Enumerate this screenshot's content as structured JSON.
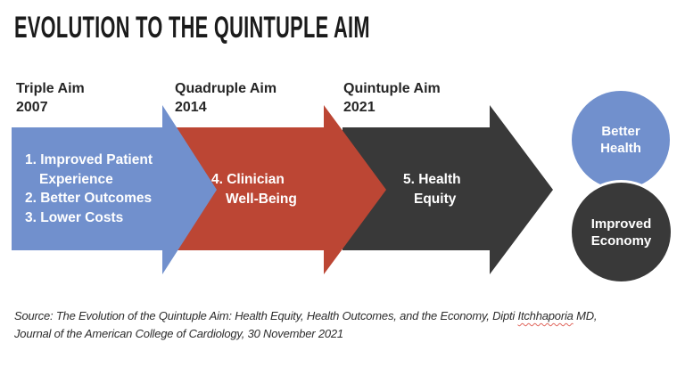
{
  "title": "EVOLUTION TO THE QUINTUPLE AIM",
  "colors": {
    "blue": "#7190cd",
    "red": "#bc4634",
    "dark": "#393939",
    "squiggle": "#e0665c"
  },
  "stages": [
    {
      "name": "Triple Aim",
      "year": "2007",
      "lines": [
        "1. Improved Patient",
        "Experience",
        "2. Better Outcomes",
        "3. Lower Costs"
      ]
    },
    {
      "name": "Quadruple Aim",
      "year": "2014",
      "lines": [
        "4. Clinician",
        "Well-Being"
      ]
    },
    {
      "name": "Quintuple Aim",
      "year": "2021",
      "lines": [
        "5. Health",
        "Equity"
      ]
    }
  ],
  "outcomes": [
    {
      "label": "Better Health"
    },
    {
      "label": "Improved Economy"
    }
  ],
  "source": {
    "prefix": "Source: The Evolution of the Quintuple Aim: Health Equity, Health Outcomes, and the Economy, Dipti ",
    "flagged_word": "Itchhaporia",
    "suffix": " MD,",
    "line2": "Journal of the American College of Cardiology, 30 November 2021"
  }
}
